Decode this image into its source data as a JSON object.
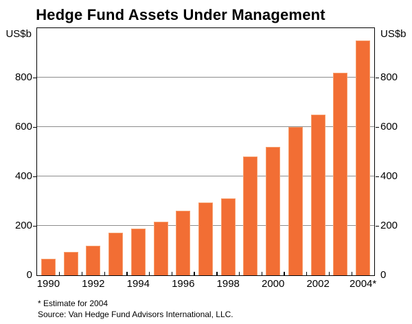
{
  "colors": {
    "bar": "#F26E34",
    "bar_highlight": "#F79E6C",
    "gridline": "#8C8C8C",
    "axis": "#000000",
    "text": "#000000",
    "background": "#FFFFFF"
  },
  "footnotes": {
    "estimate": "* Estimate for 2004",
    "source": "Source: Van Hedge Fund Advisors International, LLC."
  },
  "chart_data": {
    "type": "bar",
    "title": "Hedge Fund Assets Under Management",
    "ylabel_left": "US$b",
    "ylabel_right": "US$b",
    "categories": [
      "1990",
      "1991",
      "1992",
      "1993",
      "1994",
      "1995",
      "1996",
      "1997",
      "1998",
      "1999",
      "2000",
      "2001",
      "2002",
      "2003",
      "2004"
    ],
    "values": [
      67,
      94,
      120,
      172,
      189,
      217,
      261,
      295,
      311,
      480,
      520,
      600,
      650,
      820,
      950
    ],
    "ylim": [
      0,
      1000
    ],
    "yticks": [
      0,
      200,
      400,
      600,
      800
    ],
    "xtick_labels": [
      "1990",
      "1992",
      "1994",
      "1996",
      "1998",
      "2000",
      "2002",
      "2004*"
    ],
    "xtick_label_step": 2,
    "grid": true,
    "legend": "none",
    "note": "* Estimate for 2004",
    "source": "Source: Van Hedge Fund Advisors International, LLC."
  }
}
